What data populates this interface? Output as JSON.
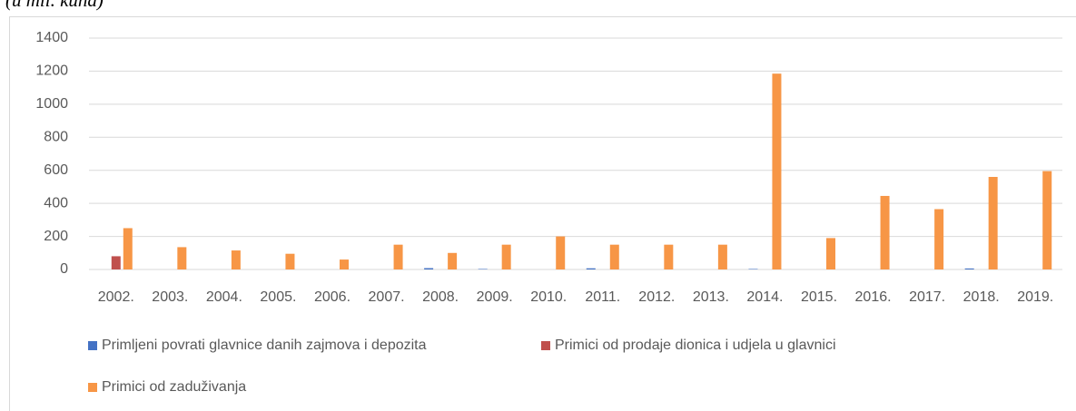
{
  "chart_data": {
    "type": "bar",
    "title": "(u mil. kuna)",
    "categories": [
      "2002.",
      "2003.",
      "2004.",
      "2005.",
      "2006.",
      "2007.",
      "2008.",
      "2009.",
      "2010.",
      "2011.",
      "2012.",
      "2013.",
      "2014.",
      "2015.",
      "2016.",
      "2017.",
      "2018.",
      "2019."
    ],
    "series": [
      {
        "name": "Primljeni povrati glavnice danih zajmova i depozita",
        "color": "#4472c4",
        "values": [
          0,
          0,
          0,
          0,
          0,
          0,
          8,
          3,
          0,
          7,
          0,
          0,
          3,
          0,
          0,
          0,
          6,
          0
        ]
      },
      {
        "name": "Primici od prodaje dionica i udjela u glavnici",
        "color": "#c0504d",
        "values": [
          80,
          0,
          0,
          0,
          0,
          0,
          0,
          0,
          0,
          0,
          0,
          0,
          0,
          0,
          0,
          0,
          0,
          0
        ]
      },
      {
        "name": "Primici od zaduživanja",
        "color": "#f79646",
        "values": [
          250,
          135,
          115,
          95,
          60,
          150,
          100,
          150,
          200,
          150,
          150,
          150,
          1185,
          190,
          445,
          365,
          560,
          595
        ]
      }
    ],
    "ylim": [
      0,
      1400
    ],
    "yticks": [
      0,
      200,
      400,
      600,
      800,
      1000,
      1200,
      1400
    ],
    "grid": true
  }
}
